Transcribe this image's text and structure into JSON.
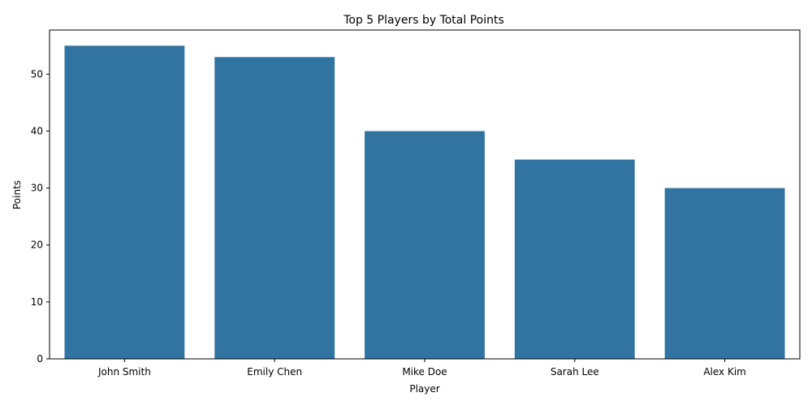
{
  "chart_data": {
    "type": "bar",
    "title": "Top 5 Players by Total Points",
    "xlabel": "Player",
    "ylabel": "Points",
    "categories": [
      "John Smith",
      "Emily Chen",
      "Mike Doe",
      "Sarah Lee",
      "Alex Kim"
    ],
    "values": [
      55,
      53,
      40,
      35,
      30
    ],
    "ylim": [
      0,
      57.75
    ],
    "yticks": [
      0,
      10,
      20,
      30,
      40,
      50
    ],
    "grid": false,
    "bar_color": "#3274a1"
  }
}
